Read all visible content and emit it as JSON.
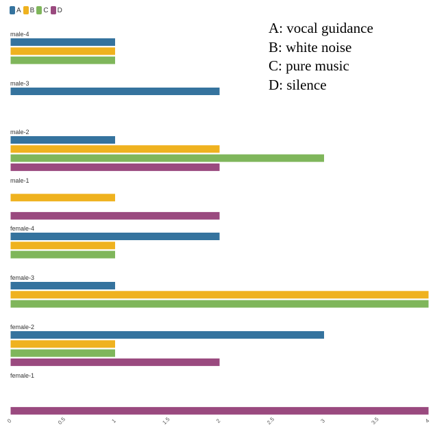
{
  "chart_data": {
    "type": "bar",
    "orientation": "horizontal",
    "categories": [
      "male-4",
      "male-3",
      "male-2",
      "male-1",
      "female-4",
      "female-3",
      "female-2",
      "female-1"
    ],
    "series": [
      {
        "name": "A",
        "color": "#35739e",
        "values": [
          1,
          2,
          1,
          0,
          2,
          1,
          3,
          0
        ]
      },
      {
        "name": "B",
        "color": "#efb21f",
        "values": [
          1,
          0,
          2,
          1,
          1,
          4,
          1,
          0
        ]
      },
      {
        "name": "C",
        "color": "#7fb65b",
        "values": [
          1,
          0,
          3,
          0,
          1,
          4,
          1,
          0
        ]
      },
      {
        "name": "D",
        "color": "#9a4a7f",
        "values": [
          0,
          0,
          2,
          2,
          0,
          0,
          2,
          4
        ]
      }
    ],
    "xlim": [
      0,
      4
    ],
    "xticks": [
      "0",
      "0.5",
      "1",
      "1.5",
      "2",
      "2.5",
      "3",
      "3.5",
      "4"
    ],
    "grid": false,
    "legend_position": "top-left",
    "annotations": [
      "A: vocal guidance",
      "B: white noise",
      "C: pure music",
      "D: silence"
    ]
  }
}
